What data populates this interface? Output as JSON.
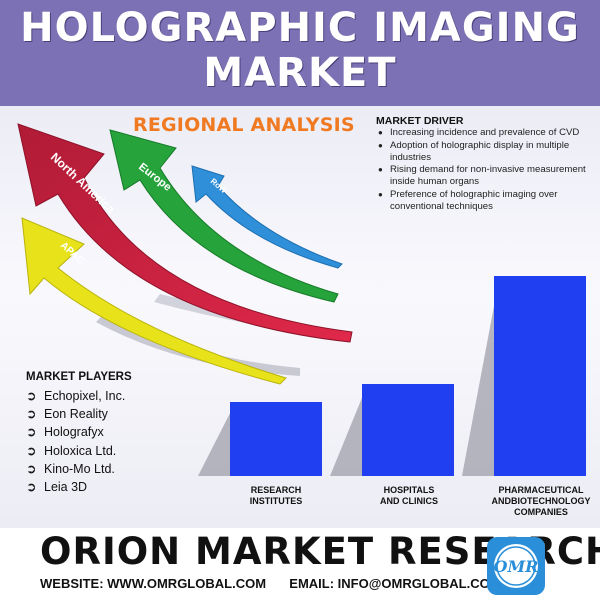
{
  "header": {
    "title_line1": "HOLOGRAPHIC IMAGING",
    "title_line2": "MARKET"
  },
  "regional_analysis": {
    "title": "REGIONAL ANALYSIS",
    "arrows": [
      {
        "label": "North America",
        "color": "#c6203f"
      },
      {
        "label": "Europe",
        "color": "#26a33b"
      },
      {
        "label": "RoW",
        "color": "#2f8fd9"
      },
      {
        "label": "APAC",
        "color": "#e8e21a"
      }
    ]
  },
  "market_driver": {
    "title": "MARKET DRIVER",
    "items": [
      "Increasing incidence and prevalence of CVD",
      "Adoption of holographic display in multiple industries",
      "Rising demand for non-invasive measurement inside human organs",
      "Preference of holographic imaging over conventional techniques"
    ]
  },
  "market_players": {
    "title": "MARKET PLAYERS",
    "items": [
      "Echopixel, Inc.",
      "Eon Reality",
      "Holografyx",
      "Holoxica Ltd.",
      "Kino-Mo Ltd.",
      "Leia 3D"
    ]
  },
  "bar_segments": {
    "color": "#1f3ff0",
    "categories": [
      "RESEARCH INSTITUTES",
      "HOSPITALS AND CLINICS",
      "PHARMACEUTICAL ANDBIOTECHNOLOGY COMPANIES"
    ],
    "cat_lines": [
      [
        "RESEARCH",
        "INSTITUTES"
      ],
      [
        "HOSPITALS",
        "AND CLINICS"
      ],
      [
        "PHARMACEUTICAL",
        "ANDBIOTECHNOLOGY",
        "COMPANIES"
      ]
    ],
    "values": [
      37,
      46,
      100
    ]
  },
  "footer": {
    "company": "ORION MARKET RESEARCH",
    "website": "WEBSITE: WWW.OMRGLOBAL.COM",
    "email": "EMAIL: INFO@OMRGLOBAL.COM",
    "logo_text": "OMR"
  }
}
